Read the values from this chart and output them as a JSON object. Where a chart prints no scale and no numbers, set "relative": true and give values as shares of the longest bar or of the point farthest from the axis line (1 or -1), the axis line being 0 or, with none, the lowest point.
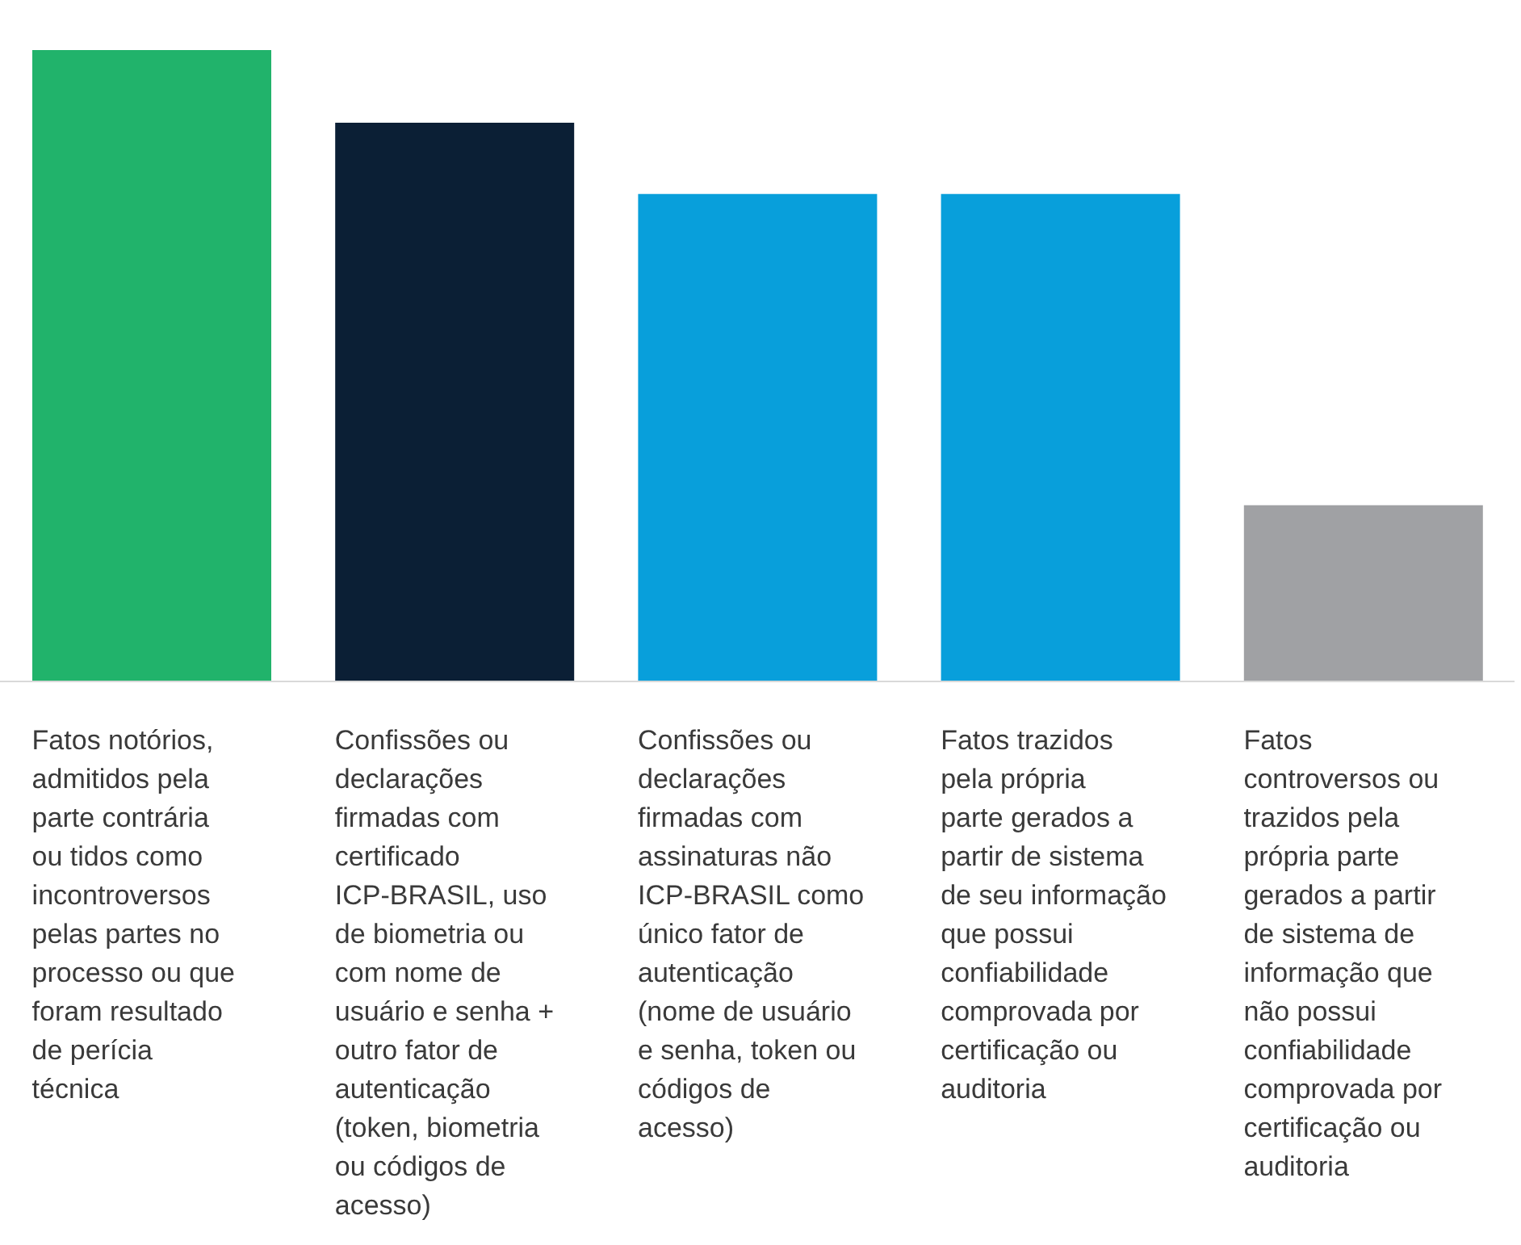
{
  "chart_data": {
    "type": "bar",
    "relative": true,
    "categories": [
      "Fatos notórios, admitidos pela parte contrária ou tidos como incontroversos pelas partes no processo ou que foram resultado de perícia técnica",
      "Confissões ou declarações firmadas com certificado ICP-BRASIL, uso de biometria ou com nome de usuário e senha + outro fator de autenticação (token, biometria ou códigos de acesso)",
      "Confissões ou declarações firmadas com assinaturas não ICP-BRASIL como único fator de autenticação (nome de usuário e senha, token ou códigos de acesso)",
      "Fatos trazidos pela própria parte gerados a partir de sistema de seu informação que possui confiabilidade comprovada por certificação ou auditoria",
      "Fatos controversos ou trazidos pela própria parte gerados a partir de sistema de informação que não possui confiabilidade comprovada por certificação ou auditoria"
    ],
    "values": [
      1,
      0.885,
      0.772,
      0.772,
      0.279
    ],
    "colors": [
      "#21b36b",
      "#0b1f35",
      "#089fdb",
      "#089fdb",
      "#a0a1a4"
    ]
  }
}
